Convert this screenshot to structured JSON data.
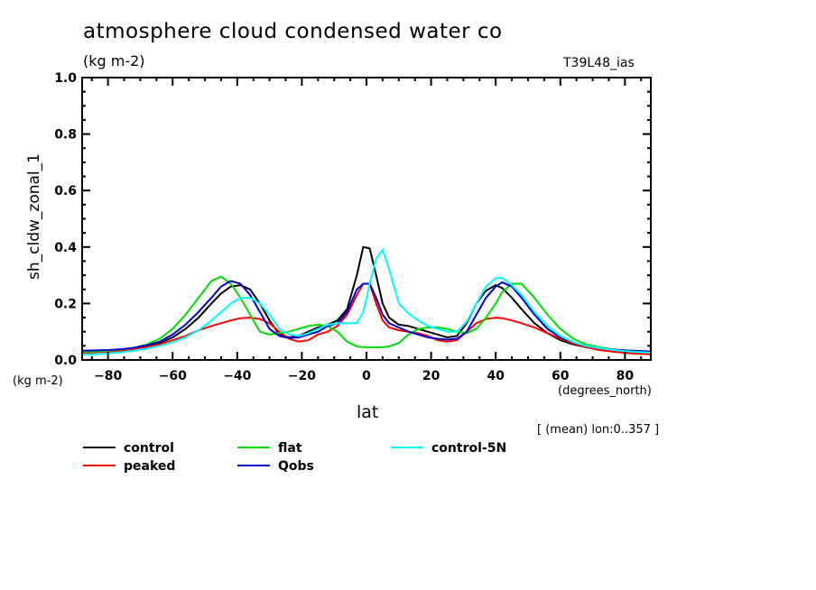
{
  "chart_data": {
    "type": "line",
    "title": "atmosphere cloud condensed water co",
    "subtitle": "(kg m-2)",
    "experiment_tag": "T39L48_ias",
    "xlabel": "lat",
    "xunits": "(degrees_north)",
    "ylabel": "sh_cldw_zonal_1",
    "yunits": "(kg m-2)",
    "note": "[ (mean) lon:0..357 ]",
    "xlim": [
      -88,
      88
    ],
    "ylim": [
      0.0,
      1.0
    ],
    "xticks": [
      -80,
      -60,
      -40,
      -20,
      0,
      20,
      40,
      60,
      80
    ],
    "xtick_labels": [
      "−80",
      "−60",
      "−40",
      "−20",
      "0",
      "20",
      "40",
      "60",
      "80"
    ],
    "yticks": [
      0.0,
      0.2,
      0.4,
      0.6,
      0.8,
      1.0
    ],
    "ytick_labels": [
      "0.0",
      "0.2",
      "0.4",
      "0.6",
      "0.8",
      "1.0"
    ],
    "grid": false,
    "legend_position": "bottom",
    "x": [
      -88,
      -84,
      -80,
      -76,
      -72,
      -68,
      -64,
      -60,
      -56,
      -52,
      -48,
      -45,
      -42,
      -39,
      -36,
      -33,
      -30,
      -27,
      -24,
      -21,
      -18,
      -15,
      -12,
      -9,
      -6,
      -3,
      -1,
      1,
      3,
      5,
      7,
      10,
      13,
      16,
      19,
      22,
      25,
      28,
      31,
      34,
      37,
      40,
      42,
      45,
      48,
      52,
      56,
      60,
      64,
      68,
      72,
      76,
      80,
      84,
      88
    ],
    "series": [
      {
        "name": "control",
        "color": "#000000",
        "values": [
          0.03,
          0.03,
          0.032,
          0.035,
          0.04,
          0.048,
          0.06,
          0.08,
          0.11,
          0.15,
          0.2,
          0.235,
          0.26,
          0.265,
          0.25,
          0.2,
          0.14,
          0.09,
          0.08,
          0.085,
          0.1,
          0.115,
          0.125,
          0.14,
          0.18,
          0.3,
          0.4,
          0.395,
          0.3,
          0.2,
          0.15,
          0.125,
          0.12,
          0.11,
          0.1,
          0.09,
          0.08,
          0.085,
          0.13,
          0.2,
          0.245,
          0.265,
          0.255,
          0.22,
          0.18,
          0.13,
          0.095,
          0.07,
          0.055,
          0.045,
          0.038,
          0.033,
          0.03,
          0.028,
          0.026
        ]
      },
      {
        "name": "peaked",
        "color": "#ff0000",
        "values": [
          0.025,
          0.027,
          0.03,
          0.033,
          0.038,
          0.045,
          0.055,
          0.07,
          0.085,
          0.105,
          0.12,
          0.13,
          0.14,
          0.148,
          0.15,
          0.145,
          0.13,
          0.1,
          0.075,
          0.065,
          0.07,
          0.09,
          0.1,
          0.12,
          0.16,
          0.23,
          0.27,
          0.27,
          0.2,
          0.14,
          0.115,
          0.105,
          0.1,
          0.095,
          0.085,
          0.07,
          0.065,
          0.07,
          0.1,
          0.13,
          0.145,
          0.15,
          0.148,
          0.14,
          0.13,
          0.115,
          0.095,
          0.075,
          0.058,
          0.045,
          0.035,
          0.03,
          0.025,
          0.022,
          0.02
        ]
      },
      {
        "name": "flat",
        "color": "#00dd00",
        "values": [
          0.028,
          0.03,
          0.033,
          0.037,
          0.043,
          0.055,
          0.075,
          0.11,
          0.16,
          0.22,
          0.28,
          0.295,
          0.27,
          0.22,
          0.16,
          0.1,
          0.09,
          0.095,
          0.1,
          0.11,
          0.12,
          0.125,
          0.12,
          0.1,
          0.065,
          0.048,
          0.045,
          0.045,
          0.045,
          0.045,
          0.048,
          0.06,
          0.09,
          0.11,
          0.115,
          0.115,
          0.11,
          0.1,
          0.095,
          0.11,
          0.15,
          0.2,
          0.24,
          0.27,
          0.27,
          0.22,
          0.16,
          0.11,
          0.075,
          0.055,
          0.045,
          0.038,
          0.034,
          0.03,
          0.028
        ]
      },
      {
        "name": "Qobs",
        "color": "#0000cc",
        "values": [
          0.033,
          0.034,
          0.035,
          0.038,
          0.043,
          0.052,
          0.065,
          0.09,
          0.125,
          0.17,
          0.22,
          0.26,
          0.28,
          0.27,
          0.23,
          0.17,
          0.11,
          0.085,
          0.078,
          0.08,
          0.09,
          0.1,
          0.12,
          0.13,
          0.17,
          0.25,
          0.27,
          0.27,
          0.22,
          0.16,
          0.13,
          0.115,
          0.1,
          0.09,
          0.08,
          0.075,
          0.072,
          0.075,
          0.1,
          0.16,
          0.22,
          0.26,
          0.275,
          0.26,
          0.22,
          0.16,
          0.11,
          0.08,
          0.062,
          0.05,
          0.042,
          0.037,
          0.034,
          0.032,
          0.03
        ]
      },
      {
        "name": "control-5N",
        "color": "#00ffff",
        "values": [
          0.018,
          0.02,
          0.023,
          0.027,
          0.033,
          0.04,
          0.05,
          0.063,
          0.08,
          0.105,
          0.14,
          0.17,
          0.2,
          0.22,
          0.22,
          0.2,
          0.16,
          0.11,
          0.09,
          0.085,
          0.095,
          0.11,
          0.125,
          0.13,
          0.13,
          0.13,
          0.17,
          0.27,
          0.36,
          0.39,
          0.32,
          0.2,
          0.165,
          0.14,
          0.12,
          0.11,
          0.1,
          0.1,
          0.135,
          0.2,
          0.26,
          0.29,
          0.29,
          0.265,
          0.23,
          0.17,
          0.12,
          0.085,
          0.063,
          0.05,
          0.042,
          0.036,
          0.031,
          0.028,
          0.026
        ]
      }
    ]
  }
}
